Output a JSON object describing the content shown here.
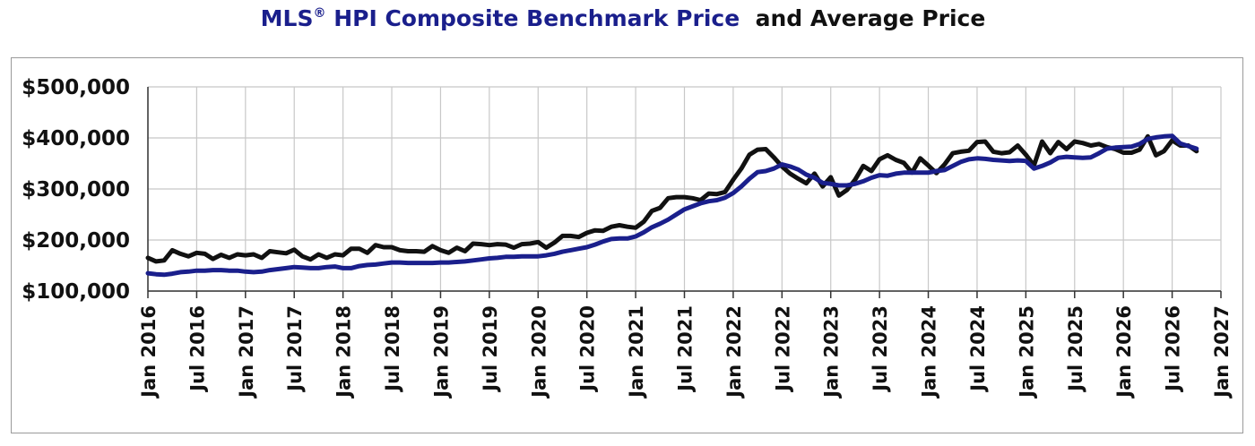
{
  "chart_data": {
    "type": "line",
    "title_part1": "MLS",
    "title_reg": "®",
    "title_part2": " HPI Composite Benchmark Price",
    "title_part3": "and Average Price",
    "xlabel": "",
    "ylabel": "",
    "ylim": [
      100000,
      500000
    ],
    "yticks": [
      100000,
      200000,
      300000,
      400000,
      500000
    ],
    "ytick_labels": [
      "$100,000",
      "$200,000",
      "$300,000",
      "$400,000",
      "$500,000"
    ],
    "xlim": [
      "2016-01",
      "2027-01"
    ],
    "xtick_labels": [
      "Jan 2016",
      "Jul 2016",
      "Jan 2017",
      "Jul 2017",
      "Jan 2018",
      "Jul 2018",
      "Jan 2019",
      "Jul 2019",
      "Jan 2020",
      "Jul 2020",
      "Jan 2021",
      "Jul 2021",
      "Jan 2022",
      "Jul 2022",
      "Jan 2023",
      "Jul 2023",
      "Jan 2024",
      "Jul 2024",
      "Jan 2025",
      "Jul 2025",
      "Jan 2026",
      "Jul 2026",
      "Jan 2027"
    ],
    "grid": true,
    "legend": "none",
    "series": [
      {
        "key": "average",
        "color": "#111111",
        "points": [
          [
            "2016-01",
            165000
          ],
          [
            "2016-02",
            158000
          ],
          [
            "2016-03",
            160000
          ],
          [
            "2016-04",
            180000
          ],
          [
            "2016-05",
            173000
          ],
          [
            "2016-06",
            168000
          ],
          [
            "2016-07",
            175000
          ],
          [
            "2016-08",
            173000
          ],
          [
            "2016-09",
            163000
          ],
          [
            "2016-10",
            171000
          ],
          [
            "2016-11",
            165000
          ],
          [
            "2016-12",
            172000
          ],
          [
            "2017-01",
            170000
          ],
          [
            "2017-02",
            172000
          ],
          [
            "2017-03",
            165000
          ],
          [
            "2017-04",
            178000
          ],
          [
            "2017-05",
            176000
          ],
          [
            "2017-06",
            174000
          ],
          [
            "2017-07",
            181000
          ],
          [
            "2017-08",
            168000
          ],
          [
            "2017-09",
            162000
          ],
          [
            "2017-10",
            172000
          ],
          [
            "2017-11",
            165000
          ],
          [
            "2017-12",
            172000
          ],
          [
            "2018-01",
            170000
          ],
          [
            "2018-02",
            183000
          ],
          [
            "2018-03",
            183000
          ],
          [
            "2018-04",
            175000
          ],
          [
            "2018-05",
            190000
          ],
          [
            "2018-06",
            186000
          ],
          [
            "2018-07",
            186000
          ],
          [
            "2018-08",
            180000
          ],
          [
            "2018-09",
            178000
          ],
          [
            "2018-10",
            178000
          ],
          [
            "2018-11",
            177000
          ],
          [
            "2018-12",
            188000
          ],
          [
            "2019-01",
            180000
          ],
          [
            "2019-02",
            175000
          ],
          [
            "2019-03",
            185000
          ],
          [
            "2019-04",
            178000
          ],
          [
            "2019-05",
            193000
          ],
          [
            "2019-06",
            192000
          ],
          [
            "2019-07",
            190000
          ],
          [
            "2019-08",
            192000
          ],
          [
            "2019-09",
            191000
          ],
          [
            "2019-10",
            185000
          ],
          [
            "2019-11",
            192000
          ],
          [
            "2019-12",
            193000
          ],
          [
            "2020-01",
            196000
          ],
          [
            "2020-02",
            185000
          ],
          [
            "2020-03",
            195000
          ],
          [
            "2020-04",
            208000
          ],
          [
            "2020-05",
            208000
          ],
          [
            "2020-06",
            206000
          ],
          [
            "2020-07",
            214000
          ],
          [
            "2020-08",
            219000
          ],
          [
            "2020-09",
            218000
          ],
          [
            "2020-10",
            226000
          ],
          [
            "2020-11",
            229000
          ],
          [
            "2020-12",
            226000
          ],
          [
            "2021-01",
            224000
          ],
          [
            "2021-02",
            236000
          ],
          [
            "2021-03",
            257000
          ],
          [
            "2021-04",
            263000
          ],
          [
            "2021-05",
            282000
          ],
          [
            "2021-06",
            284000
          ],
          [
            "2021-07",
            284000
          ],
          [
            "2021-08",
            282000
          ],
          [
            "2021-09",
            278000
          ],
          [
            "2021-10",
            291000
          ],
          [
            "2021-11",
            290000
          ],
          [
            "2021-12",
            294000
          ],
          [
            "2022-01",
            318000
          ],
          [
            "2022-02",
            340000
          ],
          [
            "2022-03",
            367000
          ],
          [
            "2022-04",
            377000
          ],
          [
            "2022-05",
            378000
          ],
          [
            "2022-06",
            362000
          ],
          [
            "2022-07",
            344000
          ],
          [
            "2022-08",
            330000
          ],
          [
            "2022-09",
            320000
          ],
          [
            "2022-10",
            311000
          ],
          [
            "2022-11",
            330000
          ],
          [
            "2022-12",
            305000
          ],
          [
            "2023-01",
            323000
          ],
          [
            "2023-02",
            287000
          ],
          [
            "2023-03",
            298000
          ],
          [
            "2023-04",
            318000
          ],
          [
            "2023-05",
            345000
          ],
          [
            "2023-06",
            335000
          ],
          [
            "2023-07",
            358000
          ],
          [
            "2023-08",
            366000
          ],
          [
            "2023-09",
            357000
          ],
          [
            "2023-10",
            351000
          ],
          [
            "2023-11",
            332000
          ],
          [
            "2023-12",
            360000
          ],
          [
            "2024-01",
            346000
          ],
          [
            "2024-02",
            331000
          ],
          [
            "2024-03",
            348000
          ],
          [
            "2024-04",
            370000
          ],
          [
            "2024-05",
            373000
          ],
          [
            "2024-06",
            375000
          ],
          [
            "2024-07",
            392000
          ],
          [
            "2024-08",
            393000
          ],
          [
            "2024-09",
            373000
          ],
          [
            "2024-10",
            370000
          ],
          [
            "2024-11",
            372000
          ],
          [
            "2024-12",
            385000
          ],
          [
            "2025-01",
            367000
          ],
          [
            "2025-02",
            346000
          ],
          [
            "2025-03",
            393000
          ],
          [
            "2025-04",
            370000
          ],
          [
            "2025-05",
            392000
          ],
          [
            "2025-06",
            378000
          ],
          [
            "2025-07",
            393000
          ],
          [
            "2025-08",
            390000
          ],
          [
            "2025-09",
            385000
          ],
          [
            "2025-10",
            388000
          ],
          [
            "2025-11",
            382000
          ],
          [
            "2025-12",
            378000
          ],
          [
            "2026-01",
            371000
          ],
          [
            "2026-02",
            371000
          ],
          [
            "2026-03",
            377000
          ],
          [
            "2026-04",
            403000
          ],
          [
            "2026-05",
            366000
          ],
          [
            "2026-06",
            374000
          ],
          [
            "2026-07",
            395000
          ],
          [
            "2026-08",
            385000
          ],
          [
            "2026-09",
            385000
          ],
          [
            "2026-10",
            374000
          ]
        ]
      },
      {
        "key": "benchmark",
        "color": "#1a1f8c",
        "points": [
          [
            "2016-01",
            135000
          ],
          [
            "2016-02",
            133000
          ],
          [
            "2016-03",
            132000
          ],
          [
            "2016-04",
            134000
          ],
          [
            "2016-05",
            137000
          ],
          [
            "2016-06",
            138000
          ],
          [
            "2016-07",
            140000
          ],
          [
            "2016-08",
            140000
          ],
          [
            "2016-09",
            141000
          ],
          [
            "2016-10",
            141000
          ],
          [
            "2016-11",
            140000
          ],
          [
            "2016-12",
            140000
          ],
          [
            "2017-01",
            138000
          ],
          [
            "2017-02",
            137000
          ],
          [
            "2017-03",
            138000
          ],
          [
            "2017-04",
            141000
          ],
          [
            "2017-05",
            143000
          ],
          [
            "2017-06",
            145000
          ],
          [
            "2017-07",
            147000
          ],
          [
            "2017-08",
            146000
          ],
          [
            "2017-09",
            145000
          ],
          [
            "2017-10",
            145000
          ],
          [
            "2017-11",
            147000
          ],
          [
            "2017-12",
            148000
          ],
          [
            "2018-01",
            145000
          ],
          [
            "2018-02",
            145000
          ],
          [
            "2018-03",
            149000
          ],
          [
            "2018-04",
            151000
          ],
          [
            "2018-05",
            152000
          ],
          [
            "2018-06",
            154000
          ],
          [
            "2018-07",
            156000
          ],
          [
            "2018-08",
            156000
          ],
          [
            "2018-09",
            155000
          ],
          [
            "2018-10",
            155000
          ],
          [
            "2018-11",
            155000
          ],
          [
            "2018-12",
            155000
          ],
          [
            "2019-01",
            156000
          ],
          [
            "2019-02",
            156000
          ],
          [
            "2019-03",
            157000
          ],
          [
            "2019-04",
            158000
          ],
          [
            "2019-05",
            160000
          ],
          [
            "2019-06",
            162000
          ],
          [
            "2019-07",
            164000
          ],
          [
            "2019-08",
            165000
          ],
          [
            "2019-09",
            167000
          ],
          [
            "2019-10",
            167000
          ],
          [
            "2019-11",
            168000
          ],
          [
            "2019-12",
            168000
          ],
          [
            "2020-01",
            168000
          ],
          [
            "2020-02",
            170000
          ],
          [
            "2020-03",
            173000
          ],
          [
            "2020-04",
            177000
          ],
          [
            "2020-05",
            180000
          ],
          [
            "2020-06",
            183000
          ],
          [
            "2020-07",
            186000
          ],
          [
            "2020-08",
            191000
          ],
          [
            "2020-09",
            197000
          ],
          [
            "2020-10",
            202000
          ],
          [
            "2020-11",
            203000
          ],
          [
            "2020-12",
            203000
          ],
          [
            "2021-01",
            207000
          ],
          [
            "2021-02",
            215000
          ],
          [
            "2021-03",
            225000
          ],
          [
            "2021-04",
            232000
          ],
          [
            "2021-05",
            240000
          ],
          [
            "2021-06",
            250000
          ],
          [
            "2021-07",
            260000
          ],
          [
            "2021-08",
            266000
          ],
          [
            "2021-09",
            272000
          ],
          [
            "2021-10",
            276000
          ],
          [
            "2021-11",
            278000
          ],
          [
            "2021-12",
            283000
          ],
          [
            "2022-01",
            292000
          ],
          [
            "2022-02",
            305000
          ],
          [
            "2022-03",
            320000
          ],
          [
            "2022-04",
            333000
          ],
          [
            "2022-05",
            335000
          ],
          [
            "2022-06",
            340000
          ],
          [
            "2022-07",
            348000
          ],
          [
            "2022-08",
            344000
          ],
          [
            "2022-09",
            338000
          ],
          [
            "2022-10",
            328000
          ],
          [
            "2022-11",
            322000
          ],
          [
            "2022-12",
            312000
          ],
          [
            "2023-01",
            310000
          ],
          [
            "2023-02",
            307000
          ],
          [
            "2023-03",
            307000
          ],
          [
            "2023-04",
            310000
          ],
          [
            "2023-05",
            315000
          ],
          [
            "2023-06",
            322000
          ],
          [
            "2023-07",
            327000
          ],
          [
            "2023-08",
            326000
          ],
          [
            "2023-09",
            330000
          ],
          [
            "2023-10",
            332000
          ],
          [
            "2023-11",
            332000
          ],
          [
            "2023-12",
            332000
          ],
          [
            "2024-01",
            332000
          ],
          [
            "2024-02",
            335000
          ],
          [
            "2024-03",
            337000
          ],
          [
            "2024-04",
            345000
          ],
          [
            "2024-05",
            353000
          ],
          [
            "2024-06",
            358000
          ],
          [
            "2024-07",
            360000
          ],
          [
            "2024-08",
            359000
          ],
          [
            "2024-09",
            357000
          ],
          [
            "2024-10",
            356000
          ],
          [
            "2024-11",
            355000
          ],
          [
            "2024-12",
            356000
          ],
          [
            "2025-01",
            355000
          ],
          [
            "2025-02",
            340000
          ],
          [
            "2025-03",
            345000
          ],
          [
            "2025-04",
            352000
          ],
          [
            "2025-05",
            361000
          ],
          [
            "2025-06",
            363000
          ],
          [
            "2025-07",
            362000
          ],
          [
            "2025-08",
            361000
          ],
          [
            "2025-09",
            362000
          ],
          [
            "2025-10",
            370000
          ],
          [
            "2025-11",
            379000
          ],
          [
            "2025-12",
            381000
          ],
          [
            "2026-01",
            382000
          ],
          [
            "2026-02",
            383000
          ],
          [
            "2026-03",
            388000
          ],
          [
            "2026-04",
            398000
          ],
          [
            "2026-05",
            401000
          ],
          [
            "2026-06",
            403000
          ],
          [
            "2026-07",
            404000
          ],
          [
            "2026-08",
            389000
          ],
          [
            "2026-09",
            384000
          ],
          [
            "2026-10",
            379000
          ]
        ]
      }
    ]
  }
}
